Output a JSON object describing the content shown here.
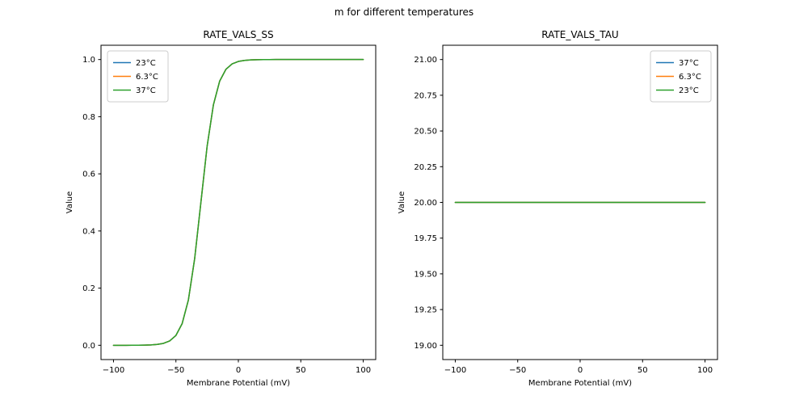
{
  "figure": {
    "suptitle": "m for different temperatures",
    "background": "#ffffff"
  },
  "palette": {
    "blue": "#1f77b4",
    "orange": "#ff7f0e",
    "green": "#2ca02c"
  },
  "chart_data": [
    {
      "id": "ss",
      "type": "line",
      "title": "RATE_VALS_SS",
      "xlabel": "Membrane Potential (mV)",
      "ylabel": "Value",
      "xlim": [
        -100,
        100
      ],
      "ylim": [
        0,
        1
      ],
      "xticks": [
        -100,
        -50,
        0,
        50,
        100
      ],
      "xtick_labels": [
        "−100",
        "−50",
        "0",
        "50",
        "100"
      ],
      "yticks": [
        0.0,
        0.2,
        0.4,
        0.6,
        0.8,
        1.0
      ],
      "ytick_labels": [
        "0.0",
        "0.2",
        "0.4",
        "0.6",
        "0.8",
        "1.0"
      ],
      "grid": false,
      "legend": {
        "loc": "upper-left",
        "entries": [
          {
            "label": "23°C",
            "color": "#1f77b4"
          },
          {
            "label": "6.3°C",
            "color": "#ff7f0e"
          },
          {
            "label": "37°C",
            "color": "#2ca02c"
          }
        ]
      },
      "x": [
        -100,
        -95,
        -90,
        -85,
        -80,
        -75,
        -70,
        -65,
        -60,
        -55,
        -50,
        -45,
        -40,
        -35,
        -30,
        -25,
        -20,
        -15,
        -10,
        -5,
        0,
        5,
        10,
        15,
        20,
        25,
        30,
        35,
        40,
        45,
        50,
        55,
        60,
        65,
        70,
        75,
        80,
        85,
        90,
        95,
        100
      ],
      "series": [
        {
          "name": "23°C",
          "color": "#1f77b4",
          "values": [
            0.0,
            0.0,
            0.0,
            0.0001,
            0.0002,
            0.0006,
            0.0013,
            0.0029,
            0.0067,
            0.0153,
            0.0344,
            0.0759,
            0.1589,
            0.303,
            0.5,
            0.697,
            0.8411,
            0.9241,
            0.9656,
            0.9847,
            0.9933,
            0.9971,
            0.9987,
            0.9994,
            0.9998,
            0.9999,
            1.0,
            1.0,
            1.0,
            1.0,
            1.0,
            1.0,
            1.0,
            1.0,
            1.0,
            1.0,
            1.0,
            1.0,
            1.0,
            1.0,
            1.0
          ]
        },
        {
          "name": "6.3°C",
          "color": "#ff7f0e",
          "values": [
            0.0,
            0.0,
            0.0,
            0.0001,
            0.0002,
            0.0006,
            0.0013,
            0.0029,
            0.0067,
            0.0153,
            0.0344,
            0.0759,
            0.1589,
            0.303,
            0.5,
            0.697,
            0.8411,
            0.9241,
            0.9656,
            0.9847,
            0.9933,
            0.9971,
            0.9987,
            0.9994,
            0.9998,
            0.9999,
            1.0,
            1.0,
            1.0,
            1.0,
            1.0,
            1.0,
            1.0,
            1.0,
            1.0,
            1.0,
            1.0,
            1.0,
            1.0,
            1.0,
            1.0
          ]
        },
        {
          "name": "37°C",
          "color": "#2ca02c",
          "values": [
            0.0,
            0.0,
            0.0,
            0.0001,
            0.0002,
            0.0006,
            0.0013,
            0.0029,
            0.0067,
            0.0153,
            0.0344,
            0.0759,
            0.1589,
            0.303,
            0.5,
            0.697,
            0.8411,
            0.9241,
            0.9656,
            0.9847,
            0.9933,
            0.9971,
            0.9987,
            0.9994,
            0.9998,
            0.9999,
            1.0,
            1.0,
            1.0,
            1.0,
            1.0,
            1.0,
            1.0,
            1.0,
            1.0,
            1.0,
            1.0,
            1.0,
            1.0,
            1.0,
            1.0
          ]
        }
      ]
    },
    {
      "id": "tau",
      "type": "line",
      "title": "RATE_VALS_TAU",
      "xlabel": "Membrane Potential (mV)",
      "ylabel": "Value",
      "xlim": [
        -100,
        100
      ],
      "ylim": [
        19,
        21
      ],
      "xticks": [
        -100,
        -50,
        0,
        50,
        100
      ],
      "xtick_labels": [
        "−100",
        "−50",
        "0",
        "50",
        "100"
      ],
      "yticks": [
        19.0,
        19.25,
        19.5,
        19.75,
        20.0,
        20.25,
        20.5,
        20.75,
        21.0
      ],
      "ytick_labels": [
        "19.00",
        "19.25",
        "19.50",
        "19.75",
        "20.00",
        "20.25",
        "20.50",
        "20.75",
        "21.00"
      ],
      "grid": false,
      "legend": {
        "loc": "upper-right",
        "entries": [
          {
            "label": "37°C",
            "color": "#1f77b4"
          },
          {
            "label": "6.3°C",
            "color": "#ff7f0e"
          },
          {
            "label": "23°C",
            "color": "#2ca02c"
          }
        ]
      },
      "x": [
        -100,
        100
      ],
      "series": [
        {
          "name": "37°C",
          "color": "#1f77b4",
          "values": [
            20.0,
            20.0
          ]
        },
        {
          "name": "6.3°C",
          "color": "#ff7f0e",
          "values": [
            20.0,
            20.0
          ]
        },
        {
          "name": "23°C",
          "color": "#2ca02c",
          "values": [
            20.0,
            20.0
          ]
        }
      ]
    }
  ]
}
